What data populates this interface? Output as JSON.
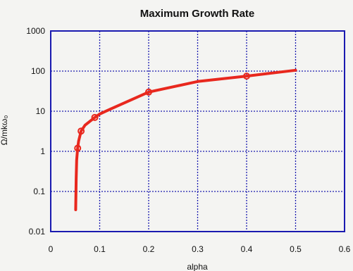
{
  "chart_data": {
    "type": "line",
    "title": "Maximum Growth Rate",
    "xlabel": "alpha",
    "ylabel": "Ω/mkω₀",
    "xlim": [
      0,
      0.6
    ],
    "ylim": [
      0.01,
      1000
    ],
    "yscale": "log",
    "xticks": [
      "0",
      "0.1",
      "0.2",
      "0.3",
      "0.4",
      "0.5",
      "0.6"
    ],
    "yticks": [
      "0.01",
      "0.1",
      "1",
      "10",
      "100",
      "1000"
    ],
    "grid": true,
    "series": [
      {
        "color": "#e8281e",
        "marker": "circle",
        "x": [
          0.051,
          0.052,
          0.053,
          0.055,
          0.057,
          0.062,
          0.07,
          0.09,
          0.1,
          0.12,
          0.2,
          0.3,
          0.4,
          0.5
        ],
        "y": [
          0.035,
          0.2,
          0.6,
          1.2,
          1.8,
          3.2,
          4.5,
          7,
          8.5,
          11,
          30,
          55,
          75,
          105
        ],
        "markers": [
          false,
          false,
          false,
          true,
          false,
          true,
          false,
          true,
          false,
          false,
          true,
          false,
          true,
          false
        ]
      }
    ],
    "colors": {
      "frame": "#1a1ab0",
      "grid": "#1a1ab0",
      "background": "#f4f4f2"
    }
  }
}
